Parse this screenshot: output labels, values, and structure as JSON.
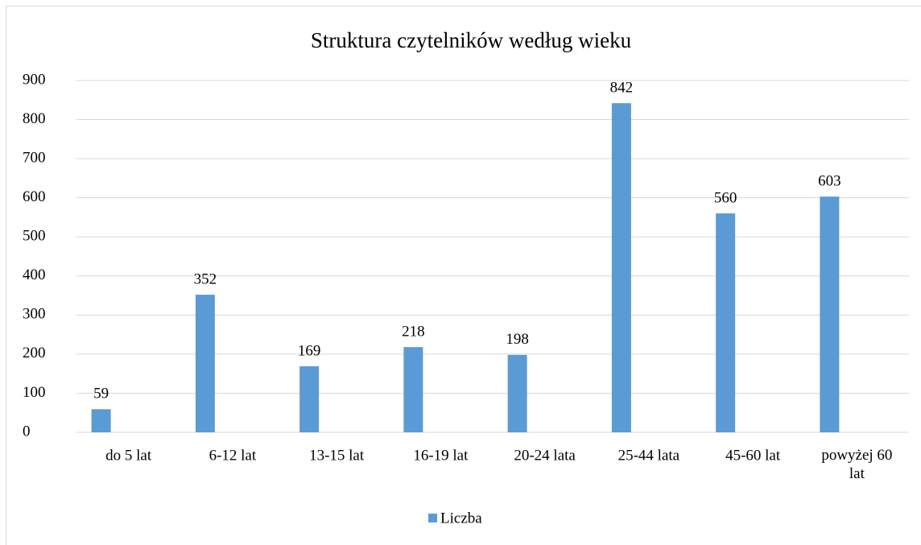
{
  "chart_data": {
    "type": "bar",
    "title": "Struktura czytelników według wieku",
    "categories": [
      "do 5 lat",
      "6-12 lat",
      "13-15 lat",
      "16-19 lat",
      "20-24 lata",
      "25-44 lata",
      "45-60 lat",
      "powyżej 60 lat"
    ],
    "series": [
      {
        "name": "Liczba",
        "color": "#5b9bd5",
        "values": [
          59,
          352,
          169,
          218,
          198,
          842,
          560,
          603
        ]
      }
    ],
    "ylim": [
      0,
      900
    ],
    "yticks": [
      0,
      100,
      200,
      300,
      400,
      500,
      600,
      700,
      800,
      900
    ],
    "grid": true,
    "legend": "bottom"
  }
}
